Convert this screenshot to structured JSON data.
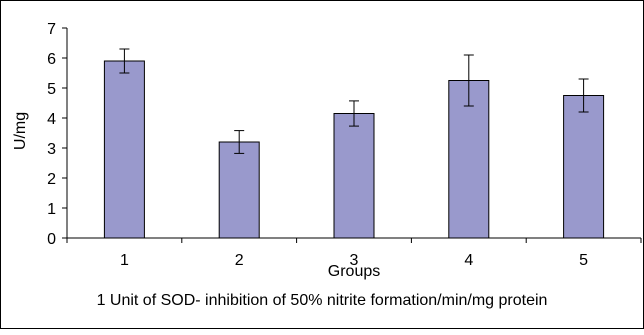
{
  "chart_data": {
    "type": "bar",
    "categories": [
      "1",
      "2",
      "3",
      "4",
      "5"
    ],
    "values": [
      5.9,
      3.2,
      4.15,
      5.25,
      4.75
    ],
    "errors": [
      0.4,
      0.38,
      0.42,
      0.85,
      0.55
    ],
    "xlabel": "Groups",
    "ylabel": "U/mg",
    "ylim": [
      0,
      7
    ],
    "yticks": [
      "0",
      "1",
      "2",
      "3",
      "4",
      "5",
      "6",
      "7"
    ],
    "grid": false,
    "bar_color": "#9999cc",
    "caption": "1 Unit of SOD- inhibition of 50% nitrite formation/min/mg protein"
  }
}
